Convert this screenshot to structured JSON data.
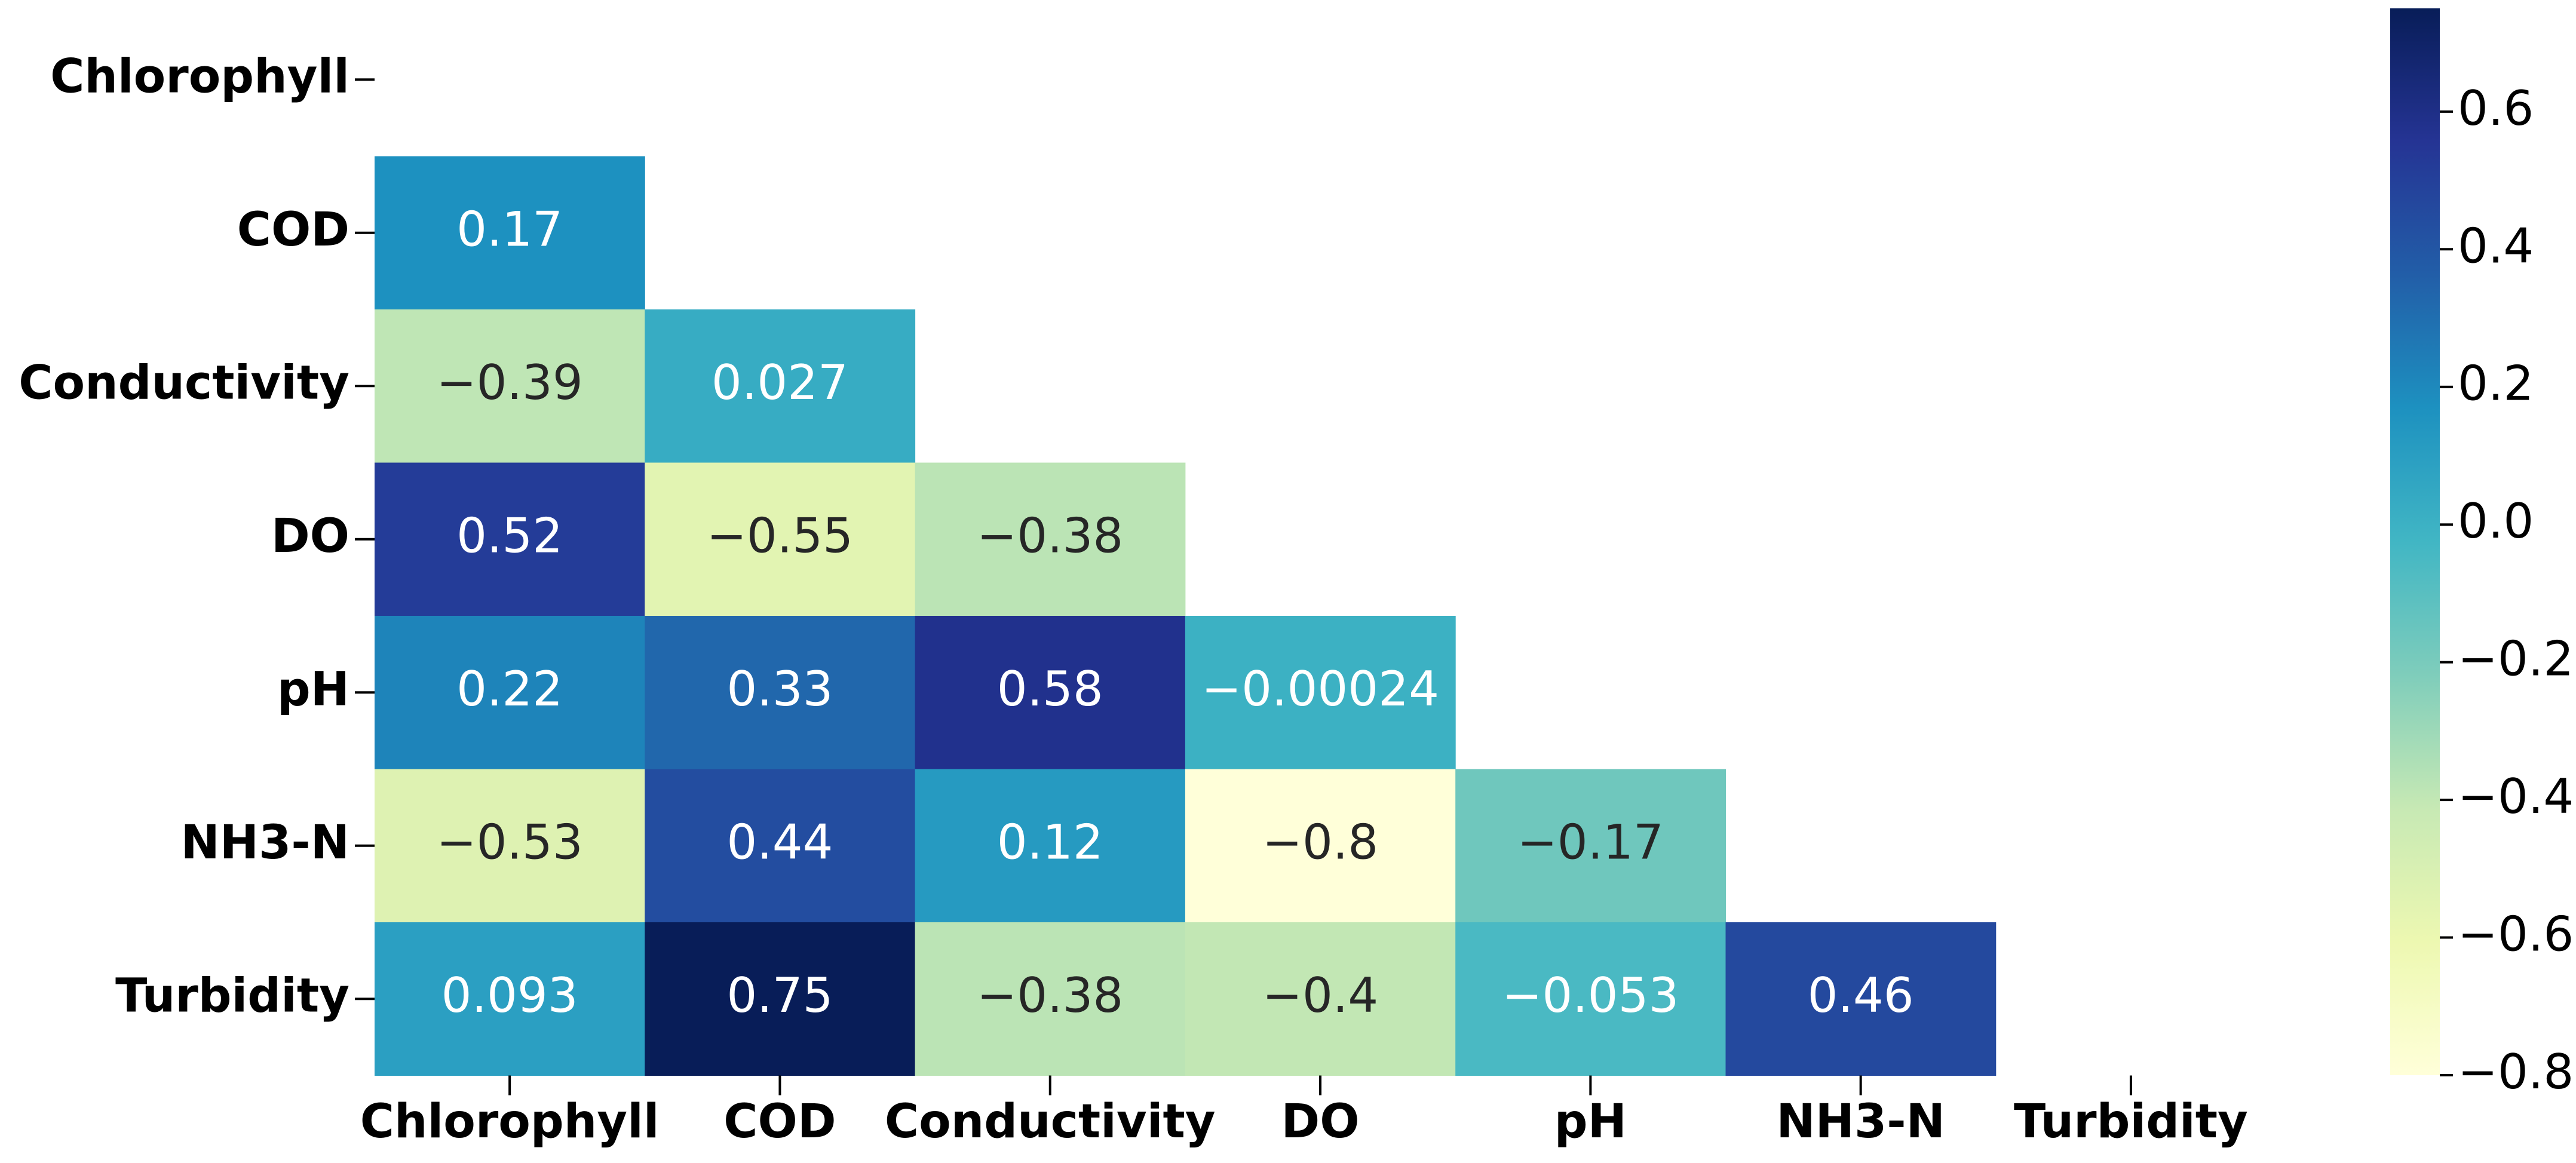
{
  "chart_data": {
    "type": "heatmap",
    "colormap": "YlGnBu",
    "rows": [
      "Chlorophyll",
      "COD",
      "Conductivity",
      "DO",
      "pH",
      "NH3-N",
      "Turbidity"
    ],
    "columns": [
      "Chlorophyll",
      "COD",
      "Conductivity",
      "DO",
      "pH",
      "NH3-N",
      "Turbidity"
    ],
    "values": [
      [
        null,
        null,
        null,
        null,
        null,
        null,
        null
      ],
      [
        0.17,
        null,
        null,
        null,
        null,
        null,
        null
      ],
      [
        -0.39,
        0.027,
        null,
        null,
        null,
        null,
        null
      ],
      [
        0.52,
        -0.55,
        -0.38,
        null,
        null,
        null,
        null
      ],
      [
        0.22,
        0.33,
        0.58,
        -0.00024,
        null,
        null,
        null
      ],
      [
        -0.53,
        0.44,
        0.12,
        -0.8,
        -0.17,
        null,
        null
      ],
      [
        0.093,
        0.75,
        -0.38,
        -0.4,
        -0.053,
        0.46,
        null
      ]
    ],
    "value_labels": [
      [
        null,
        null,
        null,
        null,
        null,
        null,
        null
      ],
      [
        "0.17",
        null,
        null,
        null,
        null,
        null,
        null
      ],
      [
        "−0.39",
        "0.027",
        null,
        null,
        null,
        null,
        null
      ],
      [
        "0.52",
        "−0.55",
        "−0.38",
        null,
        null,
        null,
        null
      ],
      [
        "0.22",
        "0.33",
        "0.58",
        "−0.00024",
        null,
        null,
        null
      ],
      [
        "−0.53",
        "0.44",
        "0.12",
        "−0.8",
        "−0.17",
        null,
        null
      ],
      [
        "0.093",
        "0.75",
        "−0.38",
        "−0.4",
        "−0.053",
        "0.46",
        null
      ]
    ],
    "clim": [
      -0.8,
      0.75
    ],
    "cticks": [
      0.6,
      0.4,
      0.2,
      {
        "value": 0,
        "label": "0.0"
      },
      {
        "value": -0.2,
        "label": "−0.2"
      },
      {
        "value": -0.4,
        "label": "−0.4"
      },
      {
        "value": -0.6,
        "label": "−0.6"
      },
      {
        "value": -0.8,
        "label": "−0.8"
      }
    ]
  }
}
